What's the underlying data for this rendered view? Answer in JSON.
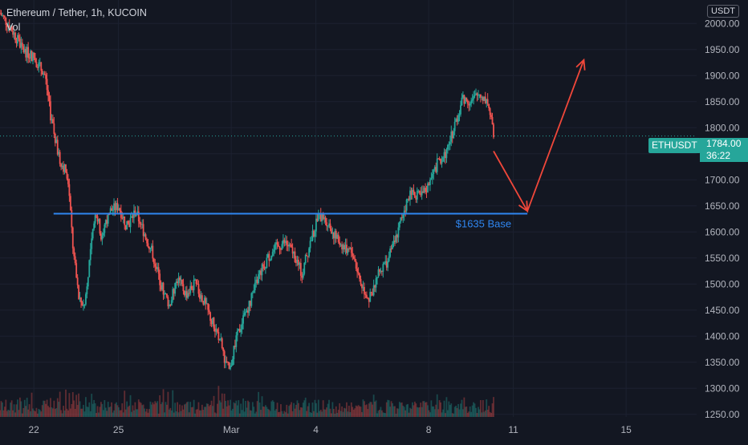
{
  "header": {
    "title": "Ethereum / Tether, 1h, KUCOIN",
    "volume_label": "Vol",
    "currency_label": "USDT"
  },
  "price_tag": {
    "symbol": "ETHUSDT",
    "price": "1784.00",
    "countdown": "36:22"
  },
  "colors": {
    "background": "#131722",
    "up": "#26a69a",
    "down": "#ef5350",
    "base_line": "#2f86f0",
    "arrow": "#f0473a",
    "axis_text": "#b2b5be",
    "grid": "#1c2130"
  },
  "chart_data": {
    "type": "candlestick",
    "y_axis": {
      "ticks": [
        2000,
        1950,
        1900,
        1850,
        1800,
        1750,
        1700,
        1650,
        1600,
        1550,
        1500,
        1450,
        1400,
        1350,
        1300,
        1250
      ],
      "tick_labels": [
        "2000.00",
        "1950.00",
        "1900.00",
        "1850.00",
        "1800.00",
        "1750.00",
        "1700.00",
        "1650.00",
        "1600.00",
        "1550.00",
        "1500.00",
        "1450.00",
        "1400.00",
        "1350.00",
        "1300.00",
        "1250.00"
      ],
      "range": [
        1245,
        2045
      ]
    },
    "x_axis": {
      "tick_labels": [
        "22",
        "25",
        "Mar",
        "4",
        "8",
        "11",
        "15"
      ],
      "tick_positions": [
        0,
        3,
        7,
        10,
        14,
        17,
        21
      ],
      "range": [
        -1.2,
        23.5
      ],
      "unit": "days from Feb 22"
    },
    "price_path": [
      [
        -1.2,
        2020
      ],
      [
        -0.8,
        1990
      ],
      [
        -0.4,
        1950
      ],
      [
        0,
        1935
      ],
      [
        0.4,
        1900
      ],
      [
        0.6,
        1820
      ],
      [
        0.9,
        1740
      ],
      [
        1.2,
        1710
      ],
      [
        1.4,
        1560
      ],
      [
        1.6,
        1470
      ],
      [
        1.8,
        1460
      ],
      [
        2.0,
        1560
      ],
      [
        2.2,
        1640
      ],
      [
        2.4,
        1590
      ],
      [
        2.7,
        1640
      ],
      [
        3.0,
        1650
      ],
      [
        3.3,
        1610
      ],
      [
        3.6,
        1640
      ],
      [
        3.9,
        1600
      ],
      [
        4.2,
        1560
      ],
      [
        4.5,
        1500
      ],
      [
        4.8,
        1460
      ],
      [
        5.1,
        1510
      ],
      [
        5.4,
        1480
      ],
      [
        5.7,
        1500
      ],
      [
        6.0,
        1470
      ],
      [
        6.3,
        1430
      ],
      [
        6.6,
        1395
      ],
      [
        6.8,
        1350
      ],
      [
        6.95,
        1330
      ],
      [
        7.1,
        1380
      ],
      [
        7.4,
        1430
      ],
      [
        7.7,
        1470
      ],
      [
        8.0,
        1520
      ],
      [
        8.3,
        1550
      ],
      [
        8.6,
        1570
      ],
      [
        8.9,
        1580
      ],
      [
        9.2,
        1560
      ],
      [
        9.5,
        1520
      ],
      [
        9.8,
        1580
      ],
      [
        10.1,
        1630
      ],
      [
        10.4,
        1620
      ],
      [
        10.7,
        1590
      ],
      [
        11.0,
        1570
      ],
      [
        11.3,
        1560
      ],
      [
        11.6,
        1500
      ],
      [
        11.9,
        1470
      ],
      [
        12.2,
        1520
      ],
      [
        12.5,
        1540
      ],
      [
        12.8,
        1580
      ],
      [
        13.1,
        1640
      ],
      [
        13.4,
        1680
      ],
      [
        13.7,
        1665
      ],
      [
        14.0,
        1690
      ],
      [
        14.3,
        1730
      ],
      [
        14.6,
        1750
      ],
      [
        14.9,
        1800
      ],
      [
        15.2,
        1855
      ],
      [
        15.5,
        1850
      ],
      [
        15.8,
        1865
      ],
      [
        16.1,
        1850
      ],
      [
        16.3,
        1784
      ]
    ],
    "annotations": {
      "base_line": {
        "label": "$1635 Base",
        "value": 1635,
        "x_from": 0.7,
        "x_to": 17.5
      },
      "current_price_line": 1784,
      "projection_arrow": [
        [
          16.3,
          1755
        ],
        [
          17.5,
          1640
        ],
        [
          19.5,
          1930
        ]
      ]
    }
  }
}
